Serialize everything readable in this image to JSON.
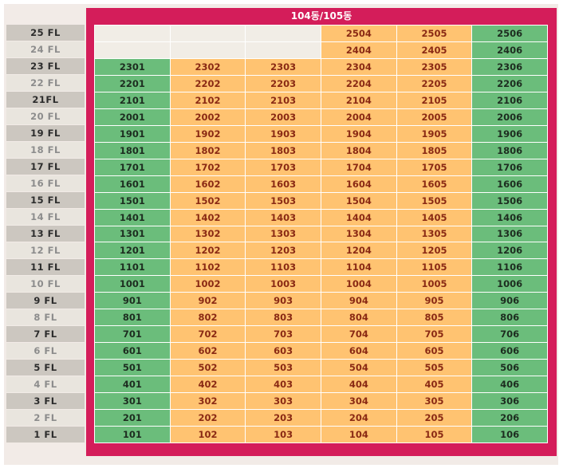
{
  "building_title": "104동/105동",
  "colors": {
    "frame": "#d41d5a",
    "unit_green": "#6bbd7b",
    "unit_orange": "#ffc371",
    "empty": "#f1ede6"
  },
  "floors": [
    {
      "label": "25 FL",
      "units": [
        null,
        null,
        null,
        "2504",
        "2505",
        "2506"
      ]
    },
    {
      "label": "24 FL",
      "units": [
        null,
        null,
        null,
        "2404",
        "2405",
        "2406"
      ]
    },
    {
      "label": "23 FL",
      "units": [
        "2301",
        "2302",
        "2303",
        "2304",
        "2305",
        "2306"
      ]
    },
    {
      "label": "22 FL",
      "units": [
        "2201",
        "2202",
        "2203",
        "2204",
        "2205",
        "2206"
      ]
    },
    {
      "label": "21FL",
      "units": [
        "2101",
        "2102",
        "2103",
        "2104",
        "2105",
        "2106"
      ]
    },
    {
      "label": "20 FL",
      "units": [
        "2001",
        "2002",
        "2003",
        "2004",
        "2005",
        "2006"
      ]
    },
    {
      "label": "19 FL",
      "units": [
        "1901",
        "1902",
        "1903",
        "1904",
        "1905",
        "1906"
      ]
    },
    {
      "label": "18 FL",
      "units": [
        "1801",
        "1802",
        "1803",
        "1804",
        "1805",
        "1806"
      ]
    },
    {
      "label": "17 FL",
      "units": [
        "1701",
        "1702",
        "1703",
        "1704",
        "1705",
        "1706"
      ]
    },
    {
      "label": "16 FL",
      "units": [
        "1601",
        "1602",
        "1603",
        "1604",
        "1605",
        "1606"
      ]
    },
    {
      "label": "15 FL",
      "units": [
        "1501",
        "1502",
        "1503",
        "1504",
        "1505",
        "1506"
      ]
    },
    {
      "label": "14 FL",
      "units": [
        "1401",
        "1402",
        "1403",
        "1404",
        "1405",
        "1406"
      ]
    },
    {
      "label": "13 FL",
      "units": [
        "1301",
        "1302",
        "1303",
        "1304",
        "1305",
        "1306"
      ]
    },
    {
      "label": "12 FL",
      "units": [
        "1201",
        "1202",
        "1203",
        "1204",
        "1205",
        "1206"
      ]
    },
    {
      "label": "11 FL",
      "units": [
        "1101",
        "1102",
        "1103",
        "1104",
        "1105",
        "1106"
      ]
    },
    {
      "label": "10 FL",
      "units": [
        "1001",
        "1002",
        "1003",
        "1004",
        "1005",
        "1006"
      ]
    },
    {
      "label": "9 FL",
      "units": [
        "901",
        "902",
        "903",
        "904",
        "905",
        "906"
      ]
    },
    {
      "label": "8 FL",
      "units": [
        "801",
        "802",
        "803",
        "804",
        "805",
        "806"
      ]
    },
    {
      "label": "7 FL",
      "units": [
        "701",
        "702",
        "703",
        "704",
        "705",
        "706"
      ]
    },
    {
      "label": "6 FL",
      "units": [
        "601",
        "602",
        "603",
        "604",
        "605",
        "606"
      ]
    },
    {
      "label": "5 FL",
      "units": [
        "501",
        "502",
        "503",
        "504",
        "505",
        "506"
      ]
    },
    {
      "label": "4 FL",
      "units": [
        "401",
        "402",
        "403",
        "404",
        "405",
        "406"
      ]
    },
    {
      "label": "3 FL",
      "units": [
        "301",
        "302",
        "303",
        "304",
        "305",
        "306"
      ]
    },
    {
      "label": "2 FL",
      "units": [
        "201",
        "202",
        "203",
        "204",
        "205",
        "206"
      ]
    },
    {
      "label": "1 FL",
      "units": [
        "101",
        "102",
        "103",
        "104",
        "105",
        "106"
      ]
    }
  ],
  "green_columns": [
    0,
    5
  ]
}
